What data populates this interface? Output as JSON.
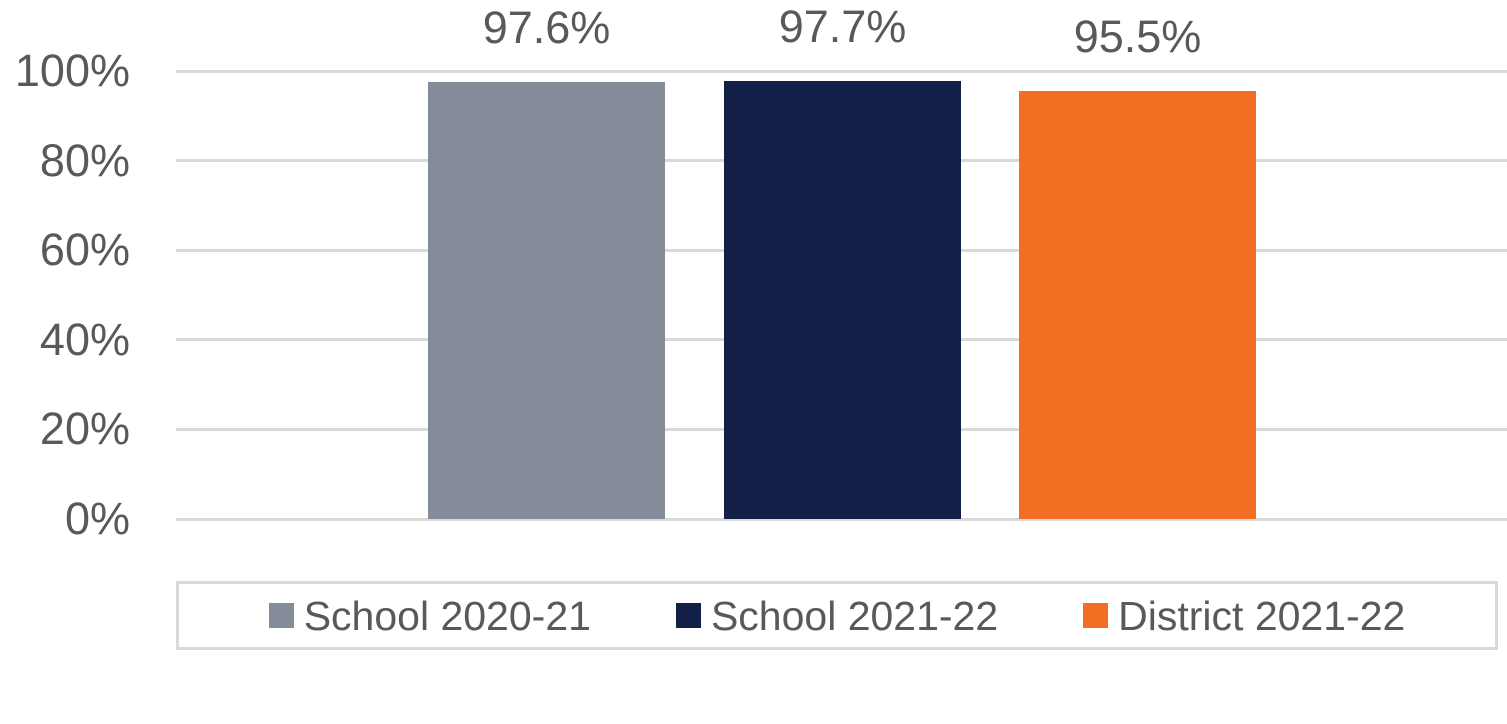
{
  "chart_data": {
    "type": "bar",
    "title": "",
    "categories": [
      "School 2020-21",
      "School 2021-22",
      "District 2021-22"
    ],
    "values": [
      97.6,
      97.7,
      95.5
    ],
    "data_labels": [
      "97.6%",
      "97.7%",
      "95.5%"
    ],
    "bar_colors": [
      "#838C98",
      "#122048",
      "#F26E23"
    ],
    "xlabel": "",
    "ylabel": "",
    "ylim": [
      0,
      100
    ],
    "yticks": [
      0,
      20,
      40,
      60,
      80,
      100
    ],
    "ytick_labels": [
      "0%",
      "20%",
      "40%",
      "60%",
      "80%",
      "100%"
    ],
    "grid": true,
    "legend_position": "bottom",
    "legend": [
      {
        "label": "School 2020-21",
        "color": "#838C98"
      },
      {
        "label": "School 2021-22",
        "color": "#122048"
      },
      {
        "label": "District 2021-22",
        "color": "#F26E23"
      }
    ]
  },
  "colors": {
    "text": "#595959",
    "gridline": "#D9D9D9",
    "legend_border": "#D9D9D9",
    "background": "#FFFFFF"
  }
}
